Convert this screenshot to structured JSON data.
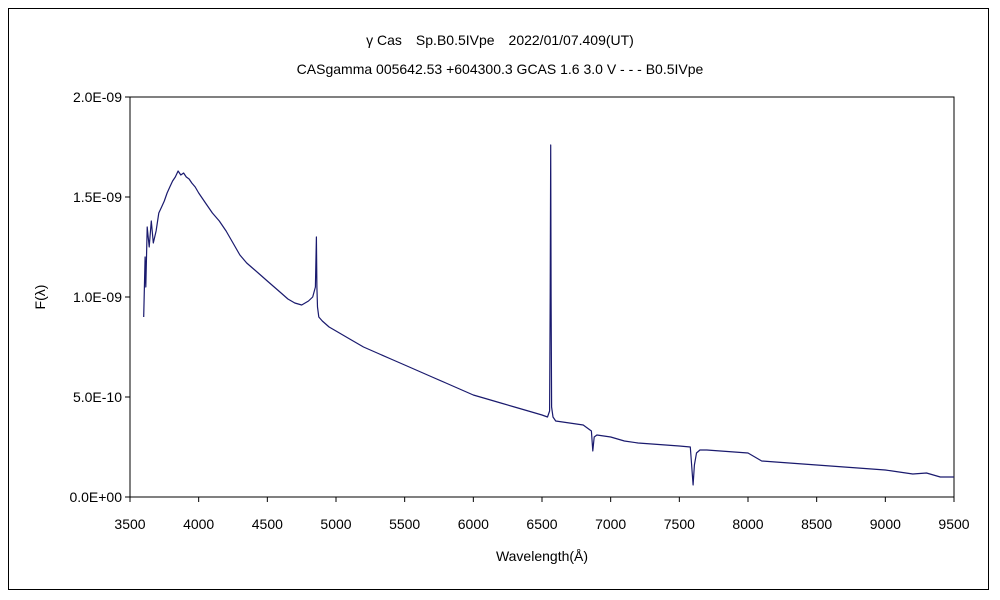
{
  "chart_data": {
    "type": "line",
    "title": "γ Cas　Sp.B0.5IVpe　2022/01/07.409(UT)",
    "subtitle": "CASgamma 005642.53 +604300.3 GCAS 1.6 3.0 V - - - B0.5IVpe",
    "xlabel": "Wavelength(Å)",
    "ylabel": "F(λ)",
    "xlim": [
      3500,
      9500
    ],
    "ylim": [
      0,
      2e-09
    ],
    "x_ticks": [
      3500,
      4000,
      4500,
      5000,
      5500,
      6000,
      6500,
      7000,
      7500,
      8000,
      8500,
      9000,
      9500
    ],
    "x_tick_labels": [
      "3500",
      "4000",
      "4500",
      "5000",
      "5500",
      "6000",
      "6500",
      "7000",
      "7500",
      "8000",
      "8500",
      "9000",
      "9500"
    ],
    "y_ticks": [
      0,
      5e-10,
      1e-09,
      1.5e-09,
      2e-09
    ],
    "y_tick_labels": [
      "0.0E+00",
      "5.0E-10",
      "1.0E-09",
      "1.5E-09",
      "2.0E-09"
    ],
    "grid": false,
    "legend": "none",
    "line_color": "#1a1a6e",
    "series": [
      {
        "x": [
          3600,
          3610,
          3615,
          3625,
          3640,
          3655,
          3670,
          3690,
          3710,
          3730,
          3750,
          3770,
          3790,
          3810,
          3830,
          3850,
          3870,
          3890,
          3910,
          3930,
          3950,
          3975,
          4000,
          4050,
          4100,
          4150,
          4200,
          4250,
          4300,
          4350,
          4400,
          4450,
          4500,
          4550,
          4600,
          4650,
          4700,
          4750,
          4800,
          4830,
          4850,
          4857,
          4861,
          4865,
          4875,
          4900,
          4950,
          5000,
          5100,
          5200,
          5300,
          5400,
          5500,
          5600,
          5700,
          5800,
          5900,
          6000,
          6100,
          6200,
          6300,
          6400,
          6500,
          6540,
          6555,
          6560,
          6563,
          6566,
          6570,
          6580,
          6600,
          6700,
          6800,
          6860,
          6870,
          6880,
          6900,
          7000,
          7100,
          7200,
          7300,
          7400,
          7500,
          7580,
          7600,
          7610,
          7625,
          7650,
          7700,
          7800,
          7900,
          8000,
          8100,
          8200,
          8300,
          8400,
          8500,
          8600,
          8700,
          8800,
          8900,
          9000,
          9100,
          9200,
          9300,
          9400,
          9500
        ],
        "values": [
          9e-10,
          1.2e-09,
          1.05e-09,
          1.35e-09,
          1.25e-09,
          1.38e-09,
          1.27e-09,
          1.33e-09,
          1.42e-09,
          1.45e-09,
          1.48e-09,
          1.52e-09,
          1.55e-09,
          1.58e-09,
          1.6e-09,
          1.63e-09,
          1.61e-09,
          1.62e-09,
          1.6e-09,
          1.59e-09,
          1.57e-09,
          1.55e-09,
          1.52e-09,
          1.47e-09,
          1.42e-09,
          1.38e-09,
          1.33e-09,
          1.27e-09,
          1.21e-09,
          1.17e-09,
          1.14e-09,
          1.11e-09,
          1.08e-09,
          1.05e-09,
          1.02e-09,
          9.9e-10,
          9.7e-10,
          9.6e-10,
          9.8e-10,
          1e-09,
          1.05e-09,
          1.3e-09,
          1.05e-09,
          9.5e-10,
          9e-10,
          8.8e-10,
          8.5e-10,
          8.3e-10,
          7.9e-10,
          7.5e-10,
          7.2e-10,
          6.9e-10,
          6.6e-10,
          6.3e-10,
          6e-10,
          5.7e-10,
          5.4e-10,
          5.1e-10,
          4.9e-10,
          4.7e-10,
          4.5e-10,
          4.3e-10,
          4.1e-10,
          4e-10,
          4.3e-10,
          1.02e-09,
          1.76e-09,
          1e-09,
          4.5e-10,
          4e-10,
          3.8e-10,
          3.7e-10,
          3.6e-10,
          3.3e-10,
          2.3e-10,
          3e-10,
          3.1e-10,
          3e-10,
          2.8e-10,
          2.7e-10,
          2.65e-10,
          2.6e-10,
          2.55e-10,
          2.5e-10,
          6e-11,
          1.6e-10,
          2.2e-10,
          2.35e-10,
          2.35e-10,
          2.3e-10,
          2.25e-10,
          2.2e-10,
          1.8e-10,
          1.75e-10,
          1.7e-10,
          1.65e-10,
          1.6e-10,
          1.55e-10,
          1.5e-10,
          1.45e-10,
          1.4e-10,
          1.35e-10,
          1.25e-10,
          1.15e-10,
          1.2e-10,
          1e-10,
          1e-10
        ]
      }
    ]
  }
}
